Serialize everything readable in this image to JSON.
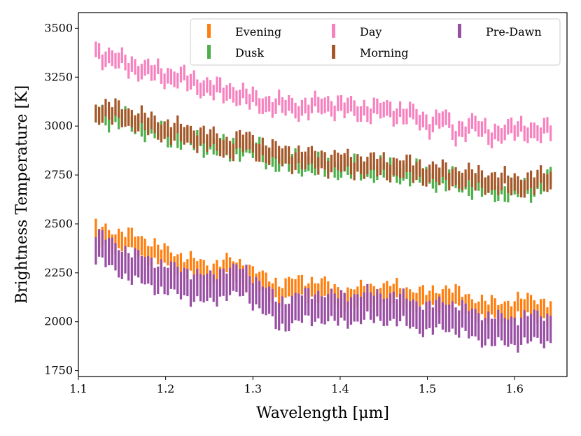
{
  "chart_data": {
    "type": "errorbar",
    "xlabel": "Wavelength [μm]",
    "ylabel": "Brightness Temperature [K]",
    "xlim": [
      1.1,
      1.66
    ],
    "ylim": [
      1720,
      3580
    ],
    "xticks": [
      1.1,
      1.2,
      1.3,
      1.4,
      1.5,
      1.6
    ],
    "xtick_labels": [
      "1.1",
      "1.2",
      "1.3",
      "1.4",
      "1.5",
      "1.6"
    ],
    "yticks": [
      1750,
      2000,
      2250,
      2500,
      2750,
      3000,
      3250,
      3500
    ],
    "ytick_labels": [
      "1750",
      "2000",
      "2250",
      "2500",
      "2750",
      "3000",
      "3250",
      "3500"
    ],
    "legend_position": "top-right",
    "x_start": 1.12,
    "x_step": 0.00375,
    "series": [
      {
        "name": "Evening",
        "color": "#ff7f0e",
        "error": 50,
        "anchors": [
          [
            1.12,
            2440
          ],
          [
            1.14,
            2420
          ],
          [
            1.17,
            2390
          ],
          [
            1.2,
            2320
          ],
          [
            1.22,
            2290
          ],
          [
            1.25,
            2240
          ],
          [
            1.27,
            2270
          ],
          [
            1.29,
            2250
          ],
          [
            1.31,
            2190
          ],
          [
            1.33,
            2150
          ],
          [
            1.35,
            2170
          ],
          [
            1.38,
            2160
          ],
          [
            1.4,
            2110
          ],
          [
            1.43,
            2130
          ],
          [
            1.46,
            2140
          ],
          [
            1.48,
            2120
          ],
          [
            1.5,
            2100
          ],
          [
            1.52,
            2130
          ],
          [
            1.55,
            2080
          ],
          [
            1.57,
            2050
          ],
          [
            1.6,
            2060
          ],
          [
            1.62,
            2080
          ],
          [
            1.645,
            2040
          ]
        ]
      },
      {
        "name": "Dusk",
        "color": "#4daf4a",
        "error": 40,
        "anchors": [
          [
            1.12,
            3060
          ],
          [
            1.15,
            3040
          ],
          [
            1.18,
            2990
          ],
          [
            1.2,
            2960
          ],
          [
            1.23,
            2930
          ],
          [
            1.25,
            2910
          ],
          [
            1.27,
            2880
          ],
          [
            1.29,
            2900
          ],
          [
            1.31,
            2860
          ],
          [
            1.33,
            2820
          ],
          [
            1.36,
            2810
          ],
          [
            1.38,
            2800
          ],
          [
            1.4,
            2790
          ],
          [
            1.43,
            2780
          ],
          [
            1.46,
            2770
          ],
          [
            1.48,
            2760
          ],
          [
            1.5,
            2740
          ],
          [
            1.52,
            2730
          ],
          [
            1.55,
            2700
          ],
          [
            1.57,
            2680
          ],
          [
            1.6,
            2670
          ],
          [
            1.62,
            2690
          ],
          [
            1.645,
            2730
          ]
        ]
      },
      {
        "name": "Day",
        "color": "#f781bf",
        "error": 40,
        "anchors": [
          [
            1.12,
            3380
          ],
          [
            1.14,
            3340
          ],
          [
            1.16,
            3310
          ],
          [
            1.18,
            3280
          ],
          [
            1.2,
            3260
          ],
          [
            1.22,
            3240
          ],
          [
            1.24,
            3210
          ],
          [
            1.26,
            3180
          ],
          [
            1.28,
            3170
          ],
          [
            1.3,
            3130
          ],
          [
            1.32,
            3110
          ],
          [
            1.34,
            3100
          ],
          [
            1.36,
            3090
          ],
          [
            1.38,
            3110
          ],
          [
            1.4,
            3100
          ],
          [
            1.42,
            3080
          ],
          [
            1.45,
            3080
          ],
          [
            1.48,
            3060
          ],
          [
            1.5,
            3010
          ],
          [
            1.52,
            3040
          ],
          [
            1.53,
            2960
          ],
          [
            1.55,
            3010
          ],
          [
            1.57,
            2960
          ],
          [
            1.59,
            2970
          ],
          [
            1.61,
            2990
          ],
          [
            1.63,
            2960
          ],
          [
            1.645,
            3000
          ]
        ]
      },
      {
        "name": "Morning",
        "color": "#a65628",
        "error": 45,
        "anchors": [
          [
            1.12,
            3080
          ],
          [
            1.15,
            3060
          ],
          [
            1.18,
            3010
          ],
          [
            1.2,
            2980
          ],
          [
            1.23,
            2950
          ],
          [
            1.25,
            2930
          ],
          [
            1.27,
            2890
          ],
          [
            1.29,
            2920
          ],
          [
            1.31,
            2880
          ],
          [
            1.33,
            2850
          ],
          [
            1.36,
            2830
          ],
          [
            1.38,
            2820
          ],
          [
            1.4,
            2810
          ],
          [
            1.43,
            2800
          ],
          [
            1.46,
            2790
          ],
          [
            1.48,
            2780
          ],
          [
            1.5,
            2760
          ],
          [
            1.52,
            2750
          ],
          [
            1.55,
            2730
          ],
          [
            1.57,
            2720
          ],
          [
            1.6,
            2700
          ],
          [
            1.62,
            2710
          ],
          [
            1.645,
            2730
          ]
        ]
      },
      {
        "name": "Pre-Dawn",
        "color": "#984ea3",
        "error": 70,
        "anchors": [
          [
            1.12,
            2400
          ],
          [
            1.14,
            2330
          ],
          [
            1.17,
            2270
          ],
          [
            1.2,
            2220
          ],
          [
            1.22,
            2200
          ],
          [
            1.25,
            2160
          ],
          [
            1.27,
            2210
          ],
          [
            1.29,
            2200
          ],
          [
            1.31,
            2130
          ],
          [
            1.33,
            2030
          ],
          [
            1.35,
            2070
          ],
          [
            1.38,
            2080
          ],
          [
            1.4,
            2060
          ],
          [
            1.43,
            2080
          ],
          [
            1.46,
            2070
          ],
          [
            1.48,
            2050
          ],
          [
            1.5,
            2010
          ],
          [
            1.52,
            2040
          ],
          [
            1.55,
            1990
          ],
          [
            1.57,
            1960
          ],
          [
            1.6,
            1950
          ],
          [
            1.62,
            1970
          ],
          [
            1.645,
            1960
          ]
        ]
      }
    ],
    "legend_columns": [
      [
        "Evening",
        "Dusk"
      ],
      [
        "Day",
        "Morning"
      ],
      [
        "Pre-Dawn"
      ]
    ]
  }
}
